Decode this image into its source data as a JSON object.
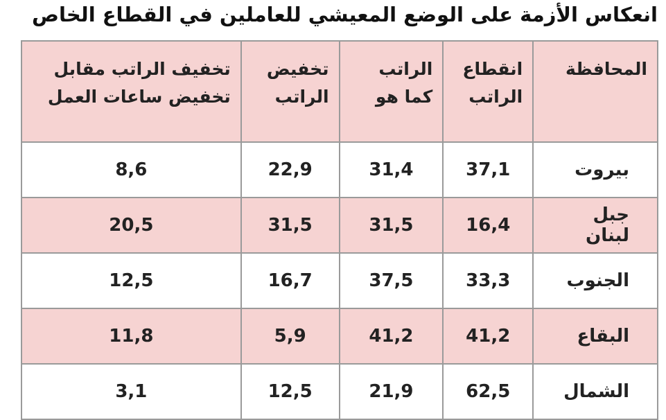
{
  "header": {
    "title": "انعكاس الأزمة على الوضع المعيشي للعاملين في القطاع الخاص"
  },
  "table": {
    "headers": [
      [
        "المحافظة"
      ],
      [
        "انقطاع",
        "الراتب"
      ],
      [
        "الراتب",
        "كما هو"
      ],
      [
        "تخفيض",
        "الراتب"
      ],
      [
        "تخفيف الراتب مقابل",
        "تخفيض ساعات العمل"
      ]
    ],
    "rows": [
      [
        "بيروت",
        "37,1",
        "31,4",
        "22,9",
        "8,6"
      ],
      [
        "جبل لبنان",
        "16,4",
        "31,5",
        "31,5",
        "20,5"
      ],
      [
        "الجنوب",
        "33,3",
        "37,5",
        "16,7",
        "12,5"
      ],
      [
        "البقاع",
        "41,2",
        "41,2",
        "5,9",
        "11,8"
      ],
      [
        "الشمال",
        "62,5",
        "21,9",
        "12,5",
        "3,1"
      ]
    ]
  }
}
